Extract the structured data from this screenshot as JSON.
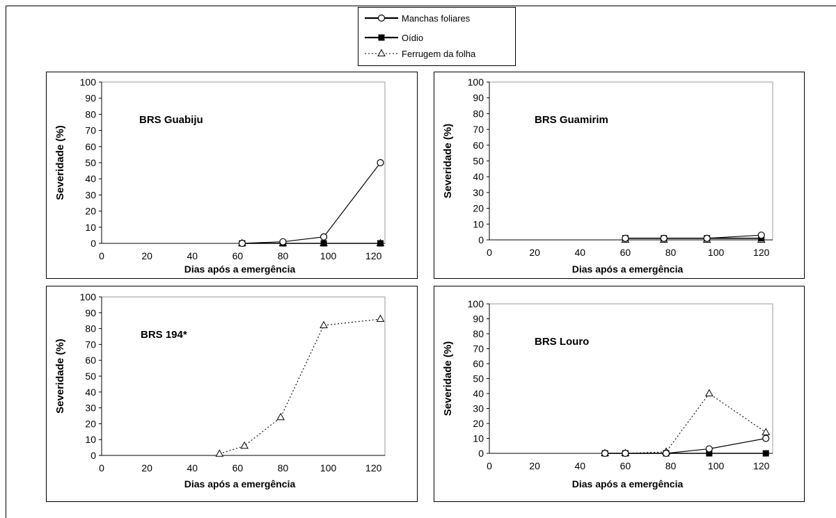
{
  "legend": {
    "items": [
      {
        "label": "Manchas foliares",
        "style": "solid",
        "marker": "open-circle"
      },
      {
        "label": "Oídio",
        "style": "solid",
        "marker": "filled-square"
      },
      {
        "label": "Ferrugem da folha",
        "style": "dotted",
        "marker": "open-triangle"
      }
    ]
  },
  "chart_data": [
    {
      "type": "line",
      "annotation": "BRS Guabiju",
      "xlabel": "Dias após a emergência",
      "ylabel": "Severidade  (%)",
      "xlim": [
        0,
        125
      ],
      "ylim": [
        0,
        100
      ],
      "xticks": [
        "0",
        "20",
        "40",
        "60",
        "80",
        "100",
        "120"
      ],
      "yticks": [
        "0",
        "10",
        "20",
        "30",
        "40",
        "50",
        "60",
        "70",
        "80",
        "90",
        "100"
      ],
      "series": [
        {
          "name": "Manchas foliares",
          "x": [
            62,
            80,
            98,
            123
          ],
          "y": [
            0,
            1,
            4,
            50
          ]
        },
        {
          "name": "Oídio",
          "x": [
            62,
            80,
            98,
            123
          ],
          "y": [
            0,
            0,
            0,
            0
          ]
        },
        {
          "name": "Ferrugem da folha",
          "x": [
            62,
            80,
            98,
            123
          ],
          "y": [
            0,
            0,
            0,
            0
          ]
        }
      ]
    },
    {
      "type": "line",
      "annotation": "BRS Guamirim",
      "xlabel": "Dias após a emergência",
      "ylabel": "Severidade  (%)",
      "xlim": [
        0,
        125
      ],
      "ylim": [
        0,
        100
      ],
      "xticks": [
        "0",
        "20",
        "40",
        "60",
        "80",
        "100",
        "120"
      ],
      "yticks": [
        "0",
        "10",
        "20",
        "30",
        "40",
        "50",
        "60",
        "70",
        "80",
        "90",
        "100"
      ],
      "series": [
        {
          "name": "Manchas foliares",
          "x": [
            60,
            77,
            96,
            120
          ],
          "y": [
            1,
            1,
            1,
            3
          ]
        },
        {
          "name": "Oídio",
          "x": [
            60,
            77,
            96,
            120
          ],
          "y": [
            1,
            1,
            1,
            1
          ]
        },
        {
          "name": "Ferrugem da folha",
          "x": [
            60,
            77,
            96,
            120
          ],
          "y": [
            0,
            0,
            0,
            0
          ]
        }
      ]
    },
    {
      "type": "line",
      "annotation": "BRS 194*",
      "xlabel": "Dias após a emergência",
      "ylabel": "Severidade  (%)",
      "xlim": [
        0,
        125
      ],
      "ylim": [
        0,
        100
      ],
      "xticks": [
        "0",
        "20",
        "40",
        "60",
        "80",
        "100",
        "120"
      ],
      "yticks": [
        "0",
        "10",
        "20",
        "30",
        "40",
        "50",
        "60",
        "70",
        "80",
        "90",
        "100"
      ],
      "series": [
        {
          "name": "Ferrugem da folha",
          "x": [
            52,
            63,
            79,
            98,
            123
          ],
          "y": [
            1,
            6,
            24,
            82,
            86
          ]
        }
      ]
    },
    {
      "type": "line",
      "annotation": "BRS Louro",
      "xlabel": "Dias após a emergência",
      "ylabel": "Severidade  (%)",
      "xlim": [
        0,
        125
      ],
      "ylim": [
        0,
        100
      ],
      "xticks": [
        "0",
        "20",
        "40",
        "60",
        "80",
        "100",
        "120"
      ],
      "yticks": [
        "0",
        "10",
        "20",
        "30",
        "40",
        "50",
        "60",
        "70",
        "80",
        "90",
        "100"
      ],
      "series": [
        {
          "name": "Manchas foliares",
          "x": [
            51,
            60,
            78,
            97,
            122
          ],
          "y": [
            0,
            0,
            0,
            3,
            10
          ]
        },
        {
          "name": "Oídio",
          "x": [
            51,
            60,
            78,
            97,
            122
          ],
          "y": [
            0,
            0,
            0,
            0,
            0
          ]
        },
        {
          "name": "Ferrugem da folha",
          "x": [
            51,
            60,
            78,
            97,
            122
          ],
          "y": [
            0,
            0,
            1,
            40,
            14
          ]
        }
      ]
    }
  ]
}
